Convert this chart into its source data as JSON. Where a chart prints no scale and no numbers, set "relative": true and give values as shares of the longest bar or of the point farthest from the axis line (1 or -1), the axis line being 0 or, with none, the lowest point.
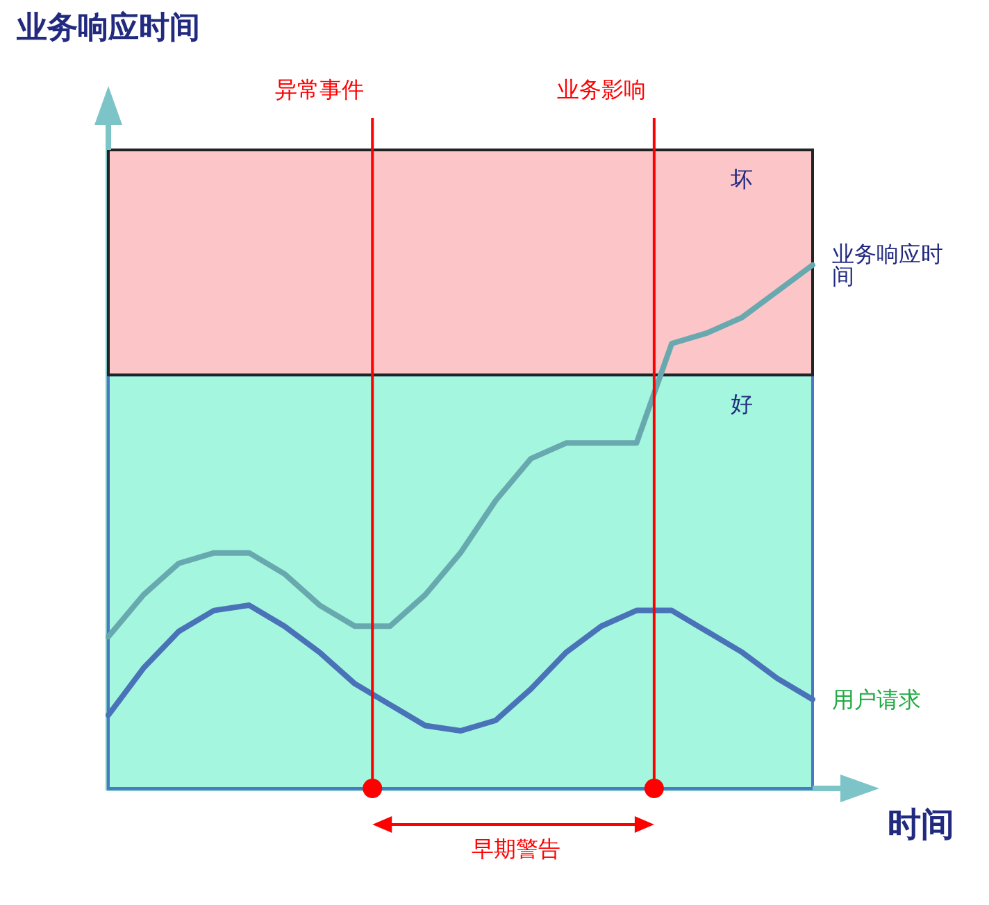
{
  "chart_data": {
    "type": "line",
    "relative": true,
    "xlabel": "时间",
    "categories": [
      null,
      null,
      null,
      null,
      null,
      null,
      null,
      null,
      null,
      null,
      null,
      null,
      null,
      null,
      null,
      null,
      null,
      null,
      null,
      null,
      null
    ],
    "series": [
      {
        "name": "业务响应时间",
        "color": "#68a9b0",
        "values": [
          0.29,
          0.37,
          0.43,
          0.45,
          0.45,
          0.41,
          0.35,
          0.31,
          0.31,
          0.37,
          0.45,
          0.55,
          0.63,
          0.66,
          0.66,
          0.66,
          0.85,
          0.87,
          0.9,
          0.95,
          1
        ]
      },
      {
        "name": "用户请求",
        "color": "#4a72b8",
        "values": [
          0.14,
          0.23,
          0.3,
          0.34,
          0.35,
          0.31,
          0.26,
          0.2,
          0.16,
          0.12,
          0.11,
          0.13,
          0.19,
          0.26,
          0.31,
          0.34,
          0.34,
          0.3,
          0.26,
          0.21,
          0.17
        ]
      }
    ],
    "bands": [
      {
        "axis": "y",
        "from": 0,
        "to": 0.79,
        "label": "好",
        "color": "#a4f7de"
      },
      {
        "axis": "y",
        "from": 0.79,
        "to": 1.22,
        "label": "坏",
        "color": "#fcc5c8"
      }
    ],
    "annotations": [
      "异常事件",
      "业务影响",
      "早期警告",
      "业务响应时间"
    ],
    "legend": false,
    "marker": "none",
    "line_style": "solid"
  }
}
